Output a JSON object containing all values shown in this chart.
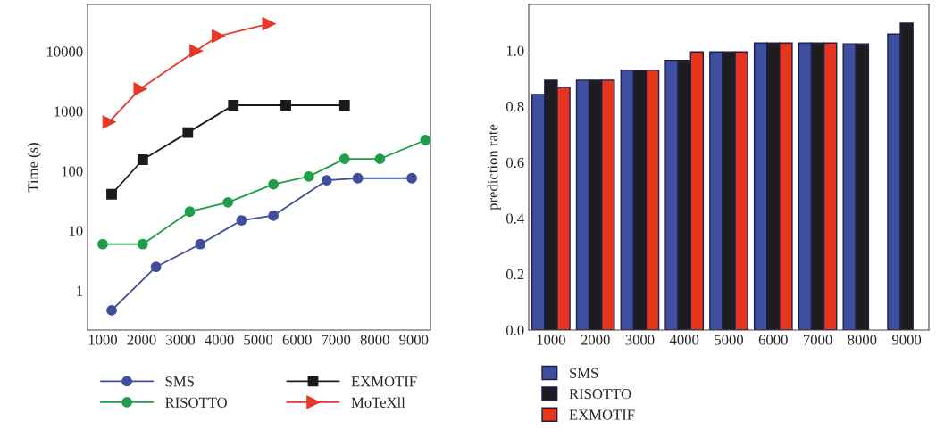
{
  "chart_data": [
    {
      "type": "line",
      "ylabel": "Time (s)",
      "log": "y",
      "xlim": [
        610,
        9430
      ],
      "ylim": [
        0.22,
        61000
      ],
      "xticks": [
        1000,
        2000,
        3000,
        4000,
        5000,
        6000,
        7000,
        8000,
        9000
      ],
      "yticks": [
        1,
        10,
        100,
        1000,
        10000
      ],
      "grid": false,
      "legend": "bottom",
      "series": [
        {
          "name": "SMS",
          "color": "#3f4d9c",
          "marker": "circle",
          "x": [
            1230,
            2370,
            3510,
            4570,
            5390,
            6760,
            7560,
            8950
          ],
          "values": [
            0.47,
            2.5,
            6,
            15,
            18,
            70,
            76,
            76
          ]
        },
        {
          "name": "RISOTTO",
          "color": "#1f9e49",
          "marker": "circle",
          "x": [
            1000,
            2030,
            3240,
            4220,
            5390,
            6300,
            7220,
            8130,
            9300
          ],
          "values": [
            6,
            6,
            21,
            30,
            60,
            81,
            160,
            160,
            330
          ]
        },
        {
          "name": "EXMOTIF",
          "color": "#1a1a1a",
          "marker": "square",
          "x": [
            1230,
            2030,
            3190,
            4360,
            5710,
            7220
          ],
          "values": [
            41,
            155,
            440,
            1260,
            1260,
            1260
          ]
        },
        {
          "name": "MoTeXll",
          "color": "#e8382a",
          "marker": "triangle",
          "x": [
            1160,
            1960,
            3400,
            3970,
            5270
          ],
          "values": [
            660,
            2350,
            10200,
            18000,
            29000
          ]
        }
      ]
    },
    {
      "type": "bar",
      "ylabel": "prediction rate",
      "ylim": [
        0,
        1.165
      ],
      "yticks": [
        {
          "value": 0,
          "label": "0.0"
        },
        {
          "value": 0.2,
          "label": "0.2"
        },
        {
          "value": 0.4,
          "label": "0.4"
        },
        {
          "value": 0.6,
          "label": "0.6"
        },
        {
          "value": 0.8,
          "label": "0.8"
        },
        {
          "value": 1.0,
          "label": "1.0"
        }
      ],
      "categories": [
        "1000",
        "2000",
        "3000",
        "4000",
        "5000",
        "6000",
        "7000",
        "8000",
        "9000"
      ],
      "grid": false,
      "legend": "bottom",
      "series": [
        {
          "name": "SMS",
          "color": "#3f4f9f",
          "values": [
            0.843,
            0.894,
            0.93,
            0.965,
            0.995,
            1.027,
            1.027,
            1.024,
            1.059
          ]
        },
        {
          "name": "RISOTTO",
          "color": "#1d1d1f",
          "values": [
            0.894,
            0.894,
            0.93,
            0.965,
            0.995,
            1.027,
            1.027,
            1.024,
            1.098
          ]
        },
        {
          "name": "EXMOTIF",
          "color": "#e5361f",
          "values": [
            0.869,
            0.894,
            0.93,
            0.995,
            0.995,
            1.027,
            1.027,
            null,
            null
          ]
        }
      ]
    }
  ]
}
